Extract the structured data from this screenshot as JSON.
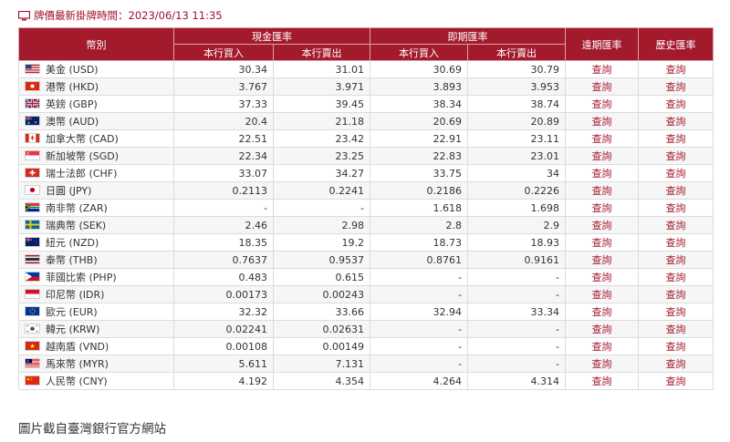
{
  "update": {
    "label": "牌價最新掛牌時間：2023/06/13 11:35"
  },
  "table": {
    "headers": {
      "currency": "幣別",
      "cash": "現金匯率",
      "spot": "即期匯率",
      "forward": "遠期匯率",
      "history": "歷史匯率",
      "buy": "本行買入",
      "sell": "本行賣出"
    },
    "link_text": "查詢",
    "rows": [
      {
        "flag": "us",
        "name": "美金 (USD)",
        "cash_buy": "30.34",
        "cash_sell": "31.01",
        "spot_buy": "30.69",
        "spot_sell": "30.79"
      },
      {
        "flag": "hk",
        "name": "港幣 (HKD)",
        "cash_buy": "3.767",
        "cash_sell": "3.971",
        "spot_buy": "3.893",
        "spot_sell": "3.953"
      },
      {
        "flag": "gb",
        "name": "英鎊 (GBP)",
        "cash_buy": "37.33",
        "cash_sell": "39.45",
        "spot_buy": "38.34",
        "spot_sell": "38.74"
      },
      {
        "flag": "au",
        "name": "澳幣 (AUD)",
        "cash_buy": "20.4",
        "cash_sell": "21.18",
        "spot_buy": "20.69",
        "spot_sell": "20.89"
      },
      {
        "flag": "ca",
        "name": "加拿大幣 (CAD)",
        "cash_buy": "22.51",
        "cash_sell": "23.42",
        "spot_buy": "22.91",
        "spot_sell": "23.11"
      },
      {
        "flag": "sg",
        "name": "新加坡幣 (SGD)",
        "cash_buy": "22.34",
        "cash_sell": "23.25",
        "spot_buy": "22.83",
        "spot_sell": "23.01"
      },
      {
        "flag": "ch",
        "name": "瑞士法郎 (CHF)",
        "cash_buy": "33.07",
        "cash_sell": "34.27",
        "spot_buy": "33.75",
        "spot_sell": "34"
      },
      {
        "flag": "jp",
        "name": "日圓 (JPY)",
        "cash_buy": "0.2113",
        "cash_sell": "0.2241",
        "spot_buy": "0.2186",
        "spot_sell": "0.2226"
      },
      {
        "flag": "za",
        "name": "南非幣 (ZAR)",
        "cash_buy": "-",
        "cash_sell": "-",
        "spot_buy": "1.618",
        "spot_sell": "1.698"
      },
      {
        "flag": "se",
        "name": "瑞典幣 (SEK)",
        "cash_buy": "2.46",
        "cash_sell": "2.98",
        "spot_buy": "2.8",
        "spot_sell": "2.9"
      },
      {
        "flag": "nz",
        "name": "紐元 (NZD)",
        "cash_buy": "18.35",
        "cash_sell": "19.2",
        "spot_buy": "18.73",
        "spot_sell": "18.93"
      },
      {
        "flag": "th",
        "name": "泰幣 (THB)",
        "cash_buy": "0.7637",
        "cash_sell": "0.9537",
        "spot_buy": "0.8761",
        "spot_sell": "0.9161"
      },
      {
        "flag": "ph",
        "name": "菲國比索 (PHP)",
        "cash_buy": "0.483",
        "cash_sell": "0.615",
        "spot_buy": "-",
        "spot_sell": "-"
      },
      {
        "flag": "id",
        "name": "印尼幣 (IDR)",
        "cash_buy": "0.00173",
        "cash_sell": "0.00243",
        "spot_buy": "-",
        "spot_sell": "-"
      },
      {
        "flag": "eu",
        "name": "歐元 (EUR)",
        "cash_buy": "32.32",
        "cash_sell": "33.66",
        "spot_buy": "32.94",
        "spot_sell": "33.34"
      },
      {
        "flag": "kr",
        "name": "韓元 (KRW)",
        "cash_buy": "0.02241",
        "cash_sell": "0.02631",
        "spot_buy": "-",
        "spot_sell": "-"
      },
      {
        "flag": "vn",
        "name": "越南盾 (VND)",
        "cash_buy": "0.00108",
        "cash_sell": "0.00149",
        "spot_buy": "-",
        "spot_sell": "-"
      },
      {
        "flag": "my",
        "name": "馬來幣 (MYR)",
        "cash_buy": "5.611",
        "cash_sell": "7.131",
        "spot_buy": "-",
        "spot_sell": "-"
      },
      {
        "flag": "cn",
        "name": "人民幣 (CNY)",
        "cash_buy": "4.192",
        "cash_sell": "4.354",
        "spot_buy": "4.264",
        "spot_sell": "4.314"
      }
    ]
  },
  "footer": {
    "caption": "圖片截自臺灣銀行官方網站"
  },
  "colors": {
    "header_bg": "#a31a2d",
    "link": "#a31a2d",
    "alt_row": "#f6f6f6"
  }
}
